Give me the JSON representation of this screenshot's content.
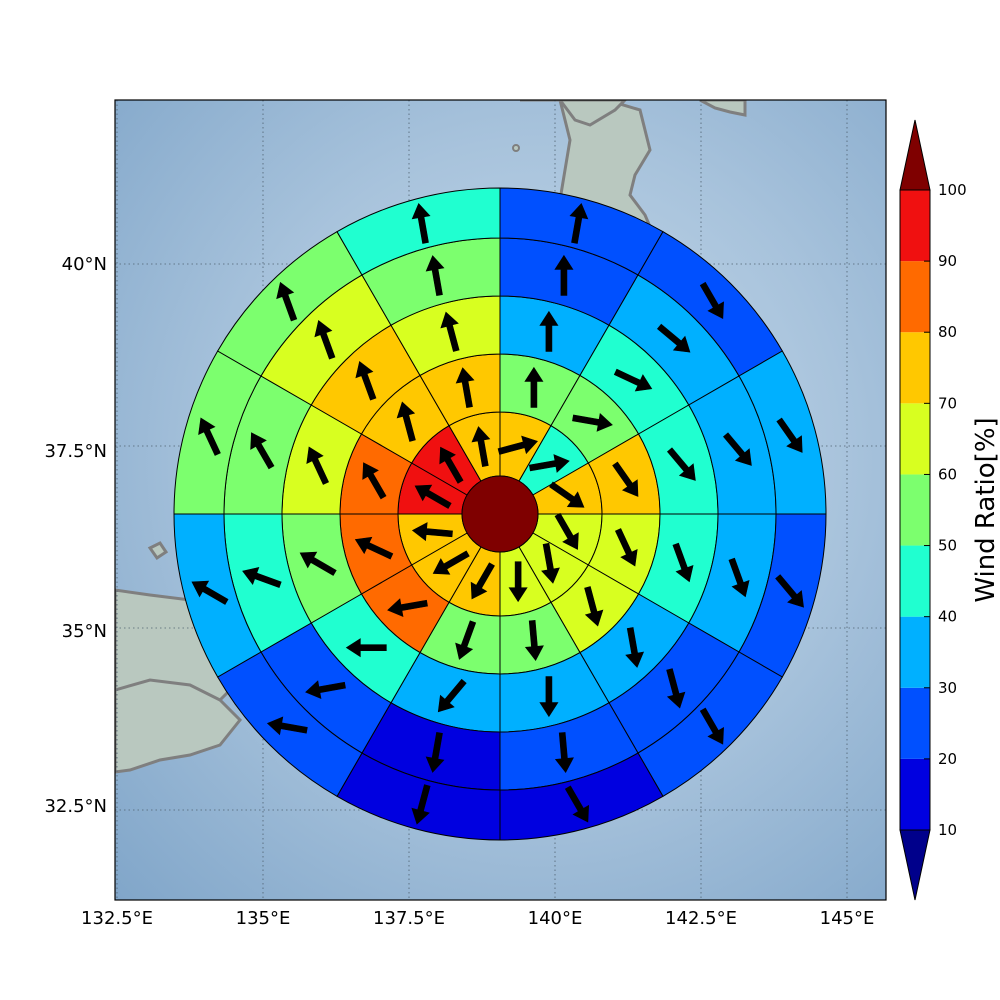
{
  "map": {
    "lon_ticks": [
      "132.5°E",
      "135°E",
      "137.5°E",
      "140°E",
      "142.5°E",
      "145°E"
    ],
    "lat_ticks": [
      "40°N",
      "37.5°N",
      "35°N",
      "32.5°N"
    ],
    "colors": {
      "ocean": "#a9c4dd",
      "land": "#b7c6be",
      "coast": "#7f7f7f",
      "grid": "#4f6170"
    }
  },
  "colorbar": {
    "title": "Wind Ratio[%]",
    "ticks": [
      "10",
      "20",
      "30",
      "40",
      "50",
      "60",
      "70",
      "80",
      "90",
      "100"
    ],
    "colors": [
      "#0000e0",
      "#0050ff",
      "#00b0ff",
      "#20ffd0",
      "#7cff6e",
      "#d8ff20",
      "#ffc800",
      "#ff6a00",
      "#f01010"
    ],
    "under_color": "#00008b",
    "over_color": "#7f0000"
  },
  "chart_data": {
    "type": "polar_sector_map",
    "center": {
      "lon": 139.0,
      "lat": 36.6
    },
    "center_value": 100,
    "sector_count": 12,
    "ring_sector_order": "starting at north, clockwise",
    "rings": [
      {
        "ring": 1,
        "values": [
          75,
          45,
          75,
          65,
          65,
          65,
          75,
          75,
          75,
          95,
          95,
          75
        ],
        "wind_dir_deg": [
          75,
          80,
          125,
          150,
          170,
          180,
          210,
          240,
          275,
          300,
          330,
          350
        ]
      },
      {
        "ring": 2,
        "values": [
          55,
          55,
          75,
          65,
          65,
          55,
          55,
          85,
          85,
          85,
          75,
          75
        ],
        "wind_dir_deg": [
          0,
          100,
          145,
          155,
          165,
          175,
          200,
          260,
          295,
          330,
          345,
          350
        ]
      },
      {
        "ring": 3,
        "values": [
          35,
          45,
          45,
          45,
          35,
          35,
          35,
          45,
          55,
          65,
          75,
          65
        ],
        "wind_dir_deg": [
          0,
          115,
          140,
          160,
          170,
          180,
          220,
          270,
          300,
          335,
          340,
          345
        ]
      },
      {
        "ring": 4,
        "values": [
          25,
          35,
          35,
          35,
          25,
          25,
          15,
          25,
          45,
          55,
          65,
          55
        ],
        "wind_dir_deg": [
          0,
          130,
          140,
          160,
          165,
          175,
          190,
          260,
          290,
          330,
          340,
          350
        ]
      },
      {
        "ring": 5,
        "values": [
          25,
          25,
          35,
          25,
          25,
          15,
          15,
          25,
          35,
          55,
          55,
          45
        ],
        "wind_dir_deg": [
          10,
          150,
          145,
          140,
          150,
          150,
          195,
          280,
          300,
          335,
          340,
          350
        ]
      }
    ]
  }
}
